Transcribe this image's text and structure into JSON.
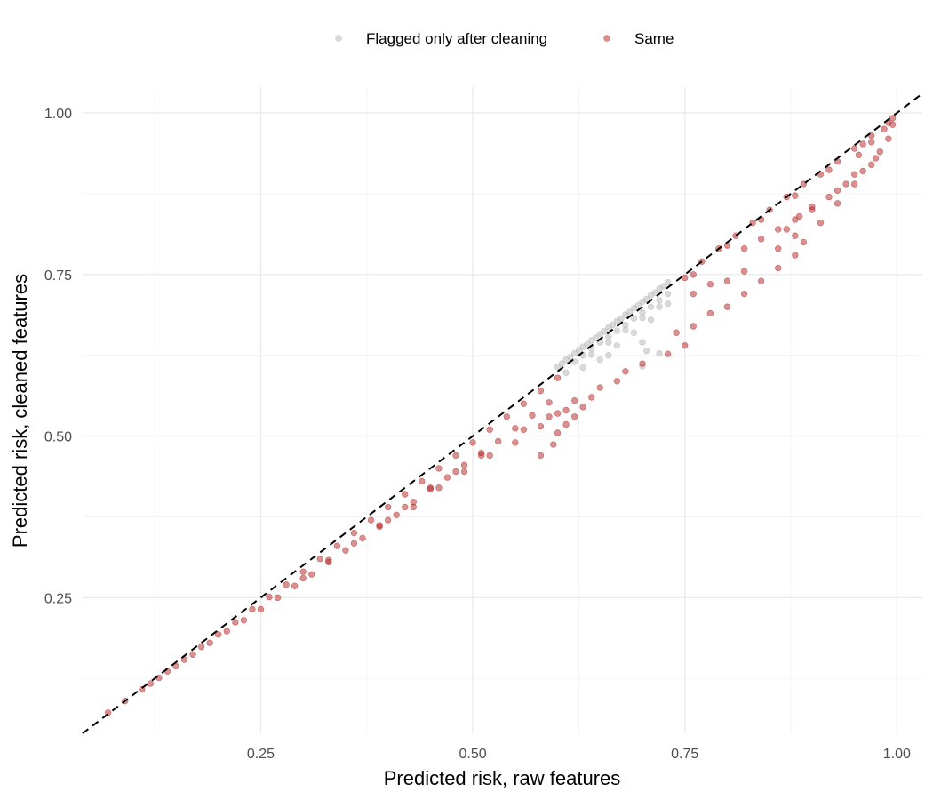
{
  "chart_data": {
    "type": "scatter",
    "xlabel": "Predicted risk, raw features",
    "ylabel": "Predicted risk, cleaned features",
    "xlim": [
      0.04,
      1.03
    ],
    "ylim": [
      0.04,
      1.04
    ],
    "x_ticks": [
      0.25,
      0.5,
      0.75,
      1.0
    ],
    "x_tick_labels": [
      "0.25",
      "0.50",
      "0.75",
      "1.00"
    ],
    "y_ticks": [
      0.25,
      0.5,
      0.75,
      1.0
    ],
    "y_tick_labels": [
      "0.25",
      "0.50",
      "0.75",
      "1.00"
    ],
    "grid": true,
    "legend_position": "top",
    "reference_line": {
      "style": "dashed",
      "color": "#000000",
      "slope": 1,
      "intercept": 0
    },
    "series": [
      {
        "name": "Flagged only after cleaning",
        "color": "#b3b3b3",
        "points": [
          [
            0.6,
            0.607
          ],
          [
            0.605,
            0.612
          ],
          [
            0.61,
            0.618
          ],
          [
            0.615,
            0.622
          ],
          [
            0.62,
            0.628
          ],
          [
            0.625,
            0.633
          ],
          [
            0.63,
            0.638
          ],
          [
            0.635,
            0.642
          ],
          [
            0.64,
            0.648
          ],
          [
            0.645,
            0.652
          ],
          [
            0.65,
            0.658
          ],
          [
            0.655,
            0.662
          ],
          [
            0.66,
            0.668
          ],
          [
            0.665,
            0.672
          ],
          [
            0.67,
            0.678
          ],
          [
            0.675,
            0.682
          ],
          [
            0.68,
            0.688
          ],
          [
            0.685,
            0.692
          ],
          [
            0.69,
            0.698
          ],
          [
            0.695,
            0.702
          ],
          [
            0.7,
            0.708
          ],
          [
            0.705,
            0.712
          ],
          [
            0.71,
            0.718
          ],
          [
            0.715,
            0.722
          ],
          [
            0.72,
            0.728
          ],
          [
            0.725,
            0.732
          ],
          [
            0.73,
            0.738
          ],
          [
            0.62,
            0.615
          ],
          [
            0.63,
            0.625
          ],
          [
            0.64,
            0.635
          ],
          [
            0.65,
            0.645
          ],
          [
            0.66,
            0.654
          ],
          [
            0.67,
            0.663
          ],
          [
            0.68,
            0.672
          ],
          [
            0.69,
            0.682
          ],
          [
            0.7,
            0.691
          ],
          [
            0.71,
            0.7
          ],
          [
            0.72,
            0.71
          ],
          [
            0.73,
            0.72
          ],
          [
            0.64,
            0.626
          ],
          [
            0.66,
            0.645
          ],
          [
            0.68,
            0.664
          ],
          [
            0.7,
            0.683
          ],
          [
            0.72,
            0.7
          ],
          [
            0.65,
            0.618
          ],
          [
            0.67,
            0.64
          ],
          [
            0.69,
            0.66
          ],
          [
            0.71,
            0.68
          ],
          [
            0.73,
            0.705
          ],
          [
            0.66,
            0.625
          ],
          [
            0.7,
            0.645
          ],
          [
            0.705,
            0.632
          ],
          [
            0.7,
            0.608
          ],
          [
            0.72,
            0.628
          ],
          [
            0.63,
            0.606
          ],
          [
            0.61,
            0.598
          ]
        ]
      },
      {
        "name": "Same",
        "color": "#b22222",
        "points": [
          [
            0.07,
            0.072
          ],
          [
            0.09,
            0.09
          ],
          [
            0.11,
            0.108
          ],
          [
            0.13,
            0.126
          ],
          [
            0.15,
            0.144
          ],
          [
            0.17,
            0.162
          ],
          [
            0.19,
            0.18
          ],
          [
            0.21,
            0.198
          ],
          [
            0.23,
            0.215
          ],
          [
            0.25,
            0.232
          ],
          [
            0.27,
            0.25
          ],
          [
            0.29,
            0.268
          ],
          [
            0.31,
            0.286
          ],
          [
            0.33,
            0.305
          ],
          [
            0.35,
            0.323
          ],
          [
            0.37,
            0.342
          ],
          [
            0.39,
            0.36
          ],
          [
            0.41,
            0.378
          ],
          [
            0.43,
            0.398
          ],
          [
            0.45,
            0.418
          ],
          [
            0.47,
            0.436
          ],
          [
            0.49,
            0.455
          ],
          [
            0.51,
            0.474
          ],
          [
            0.53,
            0.492
          ],
          [
            0.55,
            0.512
          ],
          [
            0.57,
            0.532
          ],
          [
            0.59,
            0.552
          ],
          [
            0.12,
            0.117
          ],
          [
            0.14,
            0.136
          ],
          [
            0.16,
            0.154
          ],
          [
            0.18,
            0.174
          ],
          [
            0.2,
            0.193
          ],
          [
            0.22,
            0.212
          ],
          [
            0.24,
            0.232
          ],
          [
            0.26,
            0.251
          ],
          [
            0.28,
            0.27
          ],
          [
            0.3,
            0.29
          ],
          [
            0.32,
            0.31
          ],
          [
            0.34,
            0.33
          ],
          [
            0.36,
            0.35
          ],
          [
            0.38,
            0.37
          ],
          [
            0.4,
            0.39
          ],
          [
            0.42,
            0.41
          ],
          [
            0.44,
            0.43
          ],
          [
            0.46,
            0.45
          ],
          [
            0.48,
            0.47
          ],
          [
            0.5,
            0.49
          ],
          [
            0.52,
            0.51
          ],
          [
            0.54,
            0.53
          ],
          [
            0.56,
            0.55
          ],
          [
            0.58,
            0.57
          ],
          [
            0.6,
            0.59
          ],
          [
            0.3,
            0.28
          ],
          [
            0.33,
            0.308
          ],
          [
            0.36,
            0.334
          ],
          [
            0.39,
            0.362
          ],
          [
            0.42,
            0.39
          ],
          [
            0.45,
            0.42
          ],
          [
            0.48,
            0.445
          ],
          [
            0.51,
            0.47
          ],
          [
            0.4,
            0.37
          ],
          [
            0.43,
            0.39
          ],
          [
            0.46,
            0.42
          ],
          [
            0.49,
            0.445
          ],
          [
            0.52,
            0.47
          ],
          [
            0.55,
            0.49
          ],
          [
            0.58,
            0.515
          ],
          [
            0.61,
            0.54
          ],
          [
            0.64,
            0.56
          ],
          [
            0.67,
            0.585
          ],
          [
            0.7,
            0.612
          ],
          [
            0.56,
            0.51
          ],
          [
            0.59,
            0.53
          ],
          [
            0.62,
            0.555
          ],
          [
            0.65,
            0.575
          ],
          [
            0.68,
            0.6
          ],
          [
            0.6,
            0.535
          ],
          [
            0.62,
            0.53
          ],
          [
            0.63,
            0.545
          ],
          [
            0.6,
            0.505
          ],
          [
            0.61,
            0.518
          ],
          [
            0.58,
            0.47
          ],
          [
            0.595,
            0.487
          ],
          [
            0.73,
            0.627
          ],
          [
            0.75,
            0.64
          ],
          [
            0.74,
            0.66
          ],
          [
            0.76,
            0.67
          ],
          [
            0.78,
            0.69
          ],
          [
            0.8,
            0.7
          ],
          [
            0.82,
            0.72
          ],
          [
            0.84,
            0.74
          ],
          [
            0.86,
            0.76
          ],
          [
            0.88,
            0.78
          ],
          [
            0.75,
            0.745
          ],
          [
            0.77,
            0.77
          ],
          [
            0.79,
            0.79
          ],
          [
            0.81,
            0.81
          ],
          [
            0.83,
            0.83
          ],
          [
            0.85,
            0.85
          ],
          [
            0.87,
            0.87
          ],
          [
            0.89,
            0.89
          ],
          [
            0.91,
            0.905
          ],
          [
            0.93,
            0.925
          ],
          [
            0.95,
            0.945
          ],
          [
            0.97,
            0.965
          ],
          [
            0.99,
            0.985
          ],
          [
            0.995,
            0.992
          ],
          [
            0.76,
            0.75
          ],
          [
            0.8,
            0.795
          ],
          [
            0.84,
            0.835
          ],
          [
            0.88,
            0.872
          ],
          [
            0.92,
            0.912
          ],
          [
            0.96,
            0.952
          ],
          [
            0.82,
            0.79
          ],
          [
            0.84,
            0.805
          ],
          [
            0.86,
            0.82
          ],
          [
            0.88,
            0.835
          ],
          [
            0.9,
            0.855
          ],
          [
            0.92,
            0.87
          ],
          [
            0.94,
            0.89
          ],
          [
            0.96,
            0.91
          ],
          [
            0.98,
            0.94
          ],
          [
            0.99,
            0.96
          ],
          [
            0.87,
            0.82
          ],
          [
            0.885,
            0.84
          ],
          [
            0.9,
            0.85
          ],
          [
            0.93,
            0.88
          ],
          [
            0.95,
            0.905
          ],
          [
            0.975,
            0.93
          ],
          [
            0.76,
            0.72
          ],
          [
            0.78,
            0.735
          ],
          [
            0.8,
            0.74
          ],
          [
            0.82,
            0.755
          ],
          [
            0.86,
            0.79
          ],
          [
            0.88,
            0.81
          ],
          [
            0.89,
            0.8
          ],
          [
            0.91,
            0.83
          ],
          [
            0.93,
            0.86
          ],
          [
            0.95,
            0.89
          ],
          [
            0.97,
            0.92
          ],
          [
            0.995,
            0.982
          ],
          [
            0.985,
            0.975
          ],
          [
            0.97,
            0.955
          ],
          [
            0.955,
            0.935
          ]
        ]
      }
    ]
  }
}
